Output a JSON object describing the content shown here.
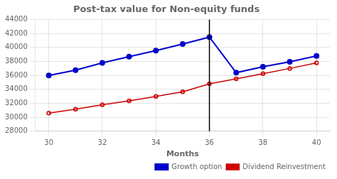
{
  "chart_data": {
    "type": "line",
    "title": "Post-tax value for Non-equity funds",
    "xlabel": "Months",
    "x": [
      30,
      31,
      32,
      33,
      34,
      35,
      36,
      37,
      38,
      39,
      40
    ],
    "series": [
      {
        "name": "Growth option",
        "color": "#0000CC",
        "marker": "circle",
        "values": [
          36000,
          36750,
          37800,
          38700,
          39550,
          40500,
          41500,
          36400,
          37250,
          37950,
          38800
        ]
      },
      {
        "name": "Dividend Reinvestment",
        "color": "#CC0000",
        "marker": "open_circle",
        "values": [
          30600,
          31150,
          31800,
          32350,
          33000,
          33650,
          34800,
          35500,
          36250,
          37000,
          37800
        ]
      }
    ],
    "vline": {
      "x": 36,
      "color": "#000000"
    },
    "xlim": [
      29.5,
      40.5
    ],
    "ylim": [
      28000,
      44000
    ],
    "xticks": [
      30,
      32,
      34,
      36,
      38,
      40
    ],
    "yticks": [
      28000,
      30000,
      32000,
      34000,
      36000,
      38000,
      40000,
      42000,
      44000
    ],
    "grid": true,
    "legend": "lower right"
  }
}
